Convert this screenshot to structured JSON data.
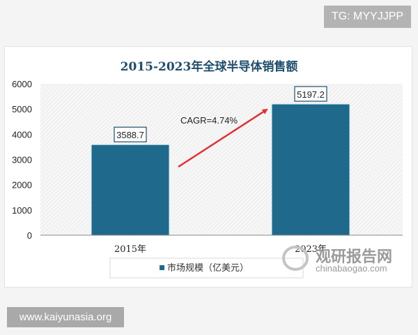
{
  "overlays": {
    "tg": "TG: MYYJJPP",
    "site": "www.kaiyunasia.org"
  },
  "watermark": {
    "cn": "观研报告网",
    "en": "chinabaogao.com"
  },
  "chart_data": {
    "type": "bar",
    "title": "2015-2023年全球半导体销售额",
    "categories": [
      "2015年",
      "2023年"
    ],
    "series": [
      {
        "name": "市场规模（亿美元）",
        "values": [
          3588.7,
          5197.2
        ],
        "color": "#1f6a8c"
      }
    ],
    "data_labels": [
      "3588.7",
      "5197.2"
    ],
    "annotation": "CAGR=4.74%",
    "annotation_color": "#e03030",
    "ylim": [
      0,
      6000
    ],
    "yticks": [
      "0",
      "1000",
      "2000",
      "3000",
      "4000",
      "5000",
      "6000"
    ],
    "legend": "bottom",
    "grid": false
  }
}
